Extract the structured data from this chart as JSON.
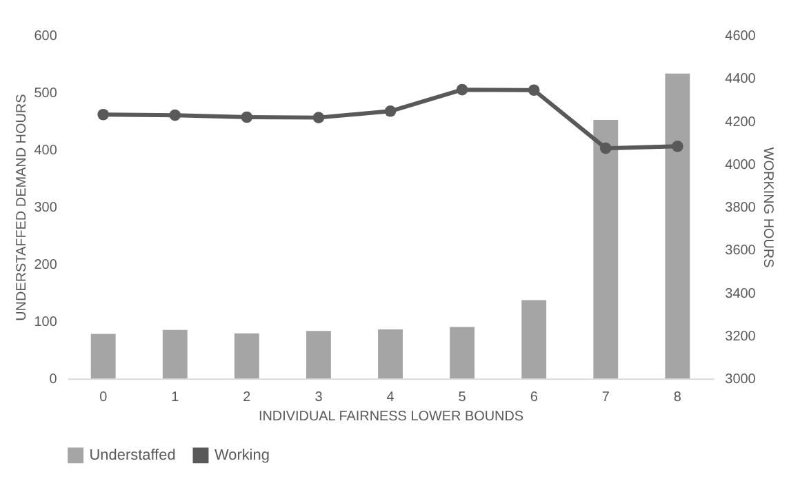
{
  "chart_data": {
    "type": "bar",
    "xlabel": "INDIVIDUAL FAIRNESS LOWER BOUNDS",
    "ylabel": "UNDERSTAFFED DEMAND HOURS",
    "y2label": "WORKING HOURS",
    "categories": [
      "0",
      "1",
      "2",
      "3",
      "4",
      "5",
      "6",
      "7",
      "8"
    ],
    "series": [
      {
        "name": "Understaffed",
        "color": "#a5a5a5",
        "values": [
          78,
          85,
          79,
          83,
          86,
          90,
          137,
          452,
          533
        ]
      },
      {
        "name": "Working",
        "type": "line",
        "axis": "y2",
        "color": "#595959",
        "values": [
          4230,
          4227,
          4218,
          4216,
          4246,
          4346,
          4344,
          4073,
          4082
        ]
      }
    ],
    "ylim": [
      0,
      600
    ],
    "yticks": [
      0,
      100,
      200,
      300,
      400,
      500,
      600
    ],
    "y2lim": [
      3000,
      4600
    ],
    "y2ticks": [
      3000,
      3200,
      3400,
      3600,
      3800,
      4000,
      4200,
      4400,
      4600
    ],
    "marker": "circle",
    "line_style": "solid",
    "grid": false,
    "legend": "bottom"
  }
}
